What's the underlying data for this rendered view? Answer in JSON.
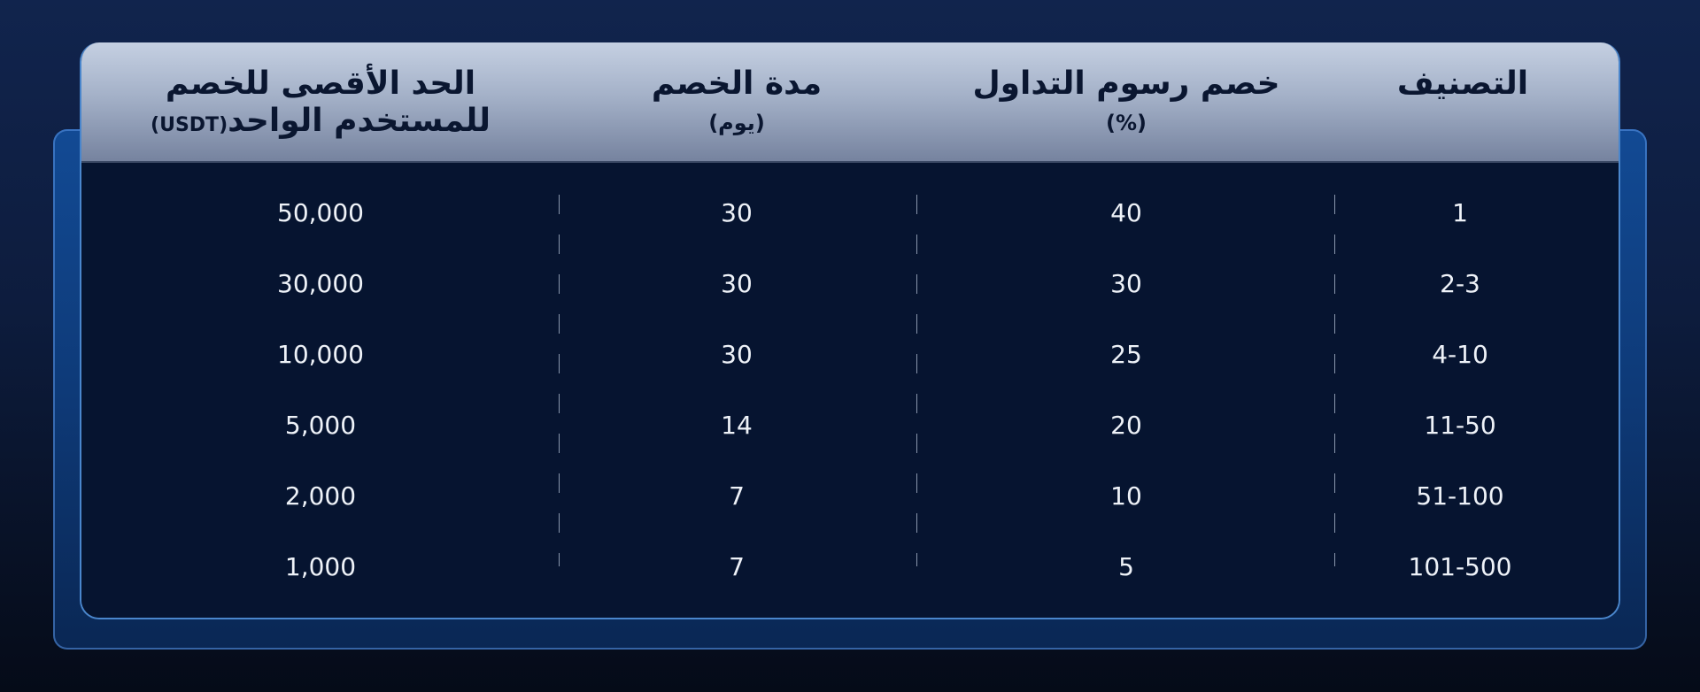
{
  "table": {
    "columns": [
      {
        "title": "التصنيف",
        "subtitle": ""
      },
      {
        "title": "خصم رسوم التداول",
        "subtitle": "(%)"
      },
      {
        "title": "مدة الخصم",
        "subtitle": "(يوم)"
      },
      {
        "title": "الحد الأقصى للخصم",
        "subtitle": "للمستخدم الواحد",
        "unit": "(USDT)"
      }
    ],
    "rows": [
      {
        "rank": "1",
        "discount": "40",
        "duration": "30",
        "max": "50,000"
      },
      {
        "rank": "2-3",
        "discount": "30",
        "duration": "30",
        "max": "30,000"
      },
      {
        "rank": "4-10",
        "discount": "25",
        "duration": "30",
        "max": "10,000"
      },
      {
        "rank": "11-50",
        "discount": "20",
        "duration": "14",
        "max": "5,000"
      },
      {
        "rank": "51-100",
        "discount": "10",
        "duration": "7",
        "max": "2,000"
      },
      {
        "rank": "101-500",
        "discount": "5",
        "duration": "7",
        "max": "1,000"
      }
    ]
  }
}
